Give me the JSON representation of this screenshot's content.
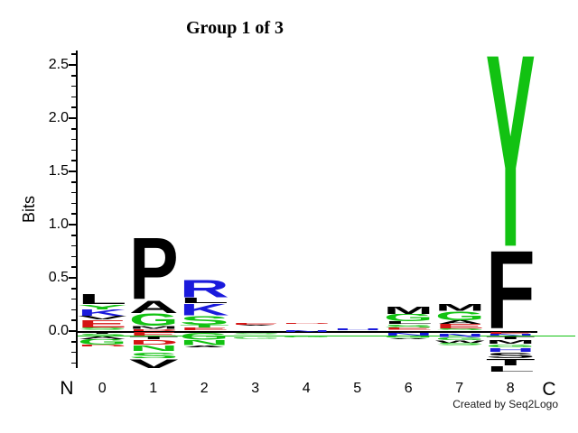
{
  "chart_data": {
    "type": "sequence_logo",
    "title": "Group 1 of 3",
    "ylabel": "Bits",
    "xlabel_left": "N",
    "xlabel_right": "C",
    "credit": "Created by Seq2Logo",
    "y_major_ticks": [
      0.0,
      0.5,
      1.0,
      1.5,
      2.0,
      2.5
    ],
    "y_minor_step": 0.1,
    "ylim": [
      -0.35,
      2.63
    ],
    "legend": "letters stacked by information content in bits; negative values drawn below zero",
    "colors": {
      "k": "#000000",
      "g": "#12c212",
      "r": "#d41414",
      "b": "#1a1adc"
    },
    "positions": [
      {
        "label": "0",
        "letters": [
          {
            "c": "L",
            "cl": "k",
            "t": 0.35,
            "b": 0.25
          },
          {
            "c": "Y",
            "cl": "g",
            "t": 0.25,
            "b": 0.205
          },
          {
            "c": "K",
            "cl": "b",
            "t": 0.205,
            "b": 0.14
          },
          {
            "c": "V",
            "cl": "k",
            "t": 0.14,
            "b": 0.105
          },
          {
            "c": "E",
            "cl": "r",
            "t": 0.105,
            "b": 0.035
          },
          {
            "c": "S",
            "cl": "g",
            "t": 0.035,
            "b": 0.012
          },
          {
            "c": "T",
            "cl": "k",
            "t": -0.012,
            "b": -0.028
          },
          {
            "c": "S",
            "cl": "g",
            "t": -0.028,
            "b": -0.05
          },
          {
            "c": "A",
            "cl": "k",
            "t": -0.05,
            "b": -0.075
          },
          {
            "c": "G",
            "cl": "g",
            "t": -0.075,
            "b": -0.128
          },
          {
            "c": "D",
            "cl": "r",
            "t": -0.128,
            "b": -0.148
          }
        ]
      },
      {
        "label": "1",
        "letters": [
          {
            "c": "P",
            "cl": "k",
            "t": 0.88,
            "b": 0.29
          },
          {
            "c": "A",
            "cl": "k",
            "t": 0.29,
            "b": 0.17
          },
          {
            "c": "G",
            "cl": "g",
            "t": 0.17,
            "b": 0.05
          },
          {
            "c": "M",
            "cl": "k",
            "t": 0.05,
            "b": 0.02
          },
          {
            "c": "D",
            "cl": "r",
            "t": 0.02,
            "b": 0.002
          },
          {
            "c": "E",
            "cl": "r",
            "t": -0.005,
            "b": -0.045
          },
          {
            "c": "T",
            "cl": "k",
            "t": -0.05,
            "b": -0.076
          },
          {
            "c": "D",
            "cl": "r",
            "t": -0.085,
            "b": -0.128
          },
          {
            "c": "N",
            "cl": "g",
            "t": -0.136,
            "b": -0.19
          },
          {
            "c": "S",
            "cl": "g",
            "t": -0.2,
            "b": -0.255
          },
          {
            "c": "V",
            "cl": "k",
            "t": -0.262,
            "b": -0.348
          }
        ]
      },
      {
        "label": "2",
        "letters": [
          {
            "c": "R",
            "cl": "b",
            "t": 0.485,
            "b": 0.315
          },
          {
            "c": "L",
            "cl": "k",
            "t": 0.315,
            "b": 0.262
          },
          {
            "c": "K",
            "cl": "b",
            "t": 0.255,
            "b": 0.145
          },
          {
            "c": "S",
            "cl": "g",
            "t": 0.145,
            "b": 0.06
          },
          {
            "c": "T",
            "cl": "g",
            "t": 0.06,
            "b": 0.035
          },
          {
            "c": "E",
            "cl": "r",
            "t": 0.035,
            "b": 0.01
          },
          {
            "c": "G",
            "cl": "g",
            "t": -0.02,
            "b": -0.085
          },
          {
            "c": "N",
            "cl": "g",
            "t": -0.085,
            "b": -0.133
          },
          {
            "c": "A",
            "cl": "k",
            "t": -0.133,
            "b": -0.155
          }
        ]
      },
      {
        "label": "3",
        "letters": [
          {
            "c": "E",
            "cl": "r",
            "t": 0.078,
            "b": 0.058
          },
          {
            "c": "A",
            "cl": "k",
            "t": 0.058,
            "b": 0.047
          },
          {
            "c": "S",
            "cl": "g",
            "t": -0.015,
            "b": -0.03
          },
          {
            "c": "G",
            "cl": "g",
            "t": -0.058,
            "b": -0.073
          }
        ]
      },
      {
        "label": "4",
        "letters": [
          {
            "c": "D",
            "cl": "r",
            "t": 0.078,
            "b": 0.068
          },
          {
            "c": "N",
            "cl": "b",
            "t": 0.012,
            "b": -0.01
          },
          {
            "c": "G",
            "cl": "g",
            "t": -0.048,
            "b": -0.06
          }
        ]
      },
      {
        "label": "5",
        "letters": [
          {
            "c": "H",
            "cl": "b",
            "t": 0.028,
            "b": 0.012
          },
          {
            "c": "G",
            "cl": "g",
            "t": -0.04,
            "b": -0.052
          }
        ]
      },
      {
        "label": "6",
        "letters": [
          {
            "c": "M",
            "cl": "k",
            "t": 0.23,
            "b": 0.16
          },
          {
            "c": "G",
            "cl": "g",
            "t": 0.16,
            "b": 0.09
          },
          {
            "c": "L",
            "cl": "k",
            "t": 0.09,
            "b": 0.062
          },
          {
            "c": "S",
            "cl": "g",
            "t": 0.062,
            "b": 0.03
          },
          {
            "c": "E",
            "cl": "r",
            "t": 0.03,
            "b": 0.008
          },
          {
            "c": "N",
            "cl": "b",
            "t": -0.02,
            "b": -0.045
          },
          {
            "c": "G",
            "cl": "g",
            "t": -0.045,
            "b": -0.065
          },
          {
            "c": "A",
            "cl": "k",
            "t": -0.065,
            "b": -0.08
          }
        ]
      },
      {
        "label": "7",
        "letters": [
          {
            "c": "M",
            "cl": "k",
            "t": 0.255,
            "b": 0.19
          },
          {
            "c": "G",
            "cl": "g",
            "t": 0.19,
            "b": 0.105
          },
          {
            "c": "A",
            "cl": "k",
            "t": 0.105,
            "b": 0.068
          },
          {
            "c": "E",
            "cl": "r",
            "t": 0.068,
            "b": 0.025
          },
          {
            "c": "S",
            "cl": "g",
            "t": 0.025,
            "b": 0.005
          },
          {
            "c": "N",
            "cl": "b",
            "t": -0.025,
            "b": -0.057
          },
          {
            "c": "G",
            "cl": "g",
            "t": -0.057,
            "b": -0.082
          },
          {
            "c": "W",
            "cl": "k",
            "t": -0.082,
            "b": -0.112
          },
          {
            "c": "S",
            "cl": "g",
            "t": -0.112,
            "b": -0.135
          }
        ]
      },
      {
        "label": "8",
        "letters": [
          {
            "c": "Y",
            "cl": "g",
            "t": 2.61,
            "b": 0.765
          },
          {
            "c": "F",
            "cl": "k",
            "t": 0.765,
            "b": 0.018
          },
          {
            "c": "E",
            "cl": "r",
            "t": -0.005,
            "b": -0.025
          },
          {
            "c": "N",
            "cl": "b",
            "t": -0.025,
            "b": -0.046
          },
          {
            "c": "T",
            "cl": "k",
            "t": -0.05,
            "b": -0.076
          },
          {
            "c": "M",
            "cl": "k",
            "t": -0.085,
            "b": -0.119
          },
          {
            "c": "G",
            "cl": "g",
            "t": -0.127,
            "b": -0.153
          },
          {
            "c": "H",
            "cl": "b",
            "t": -0.161,
            "b": -0.195
          },
          {
            "c": "S",
            "cl": "k",
            "t": -0.203,
            "b": -0.254
          },
          {
            "c": "T",
            "cl": "k",
            "t": -0.263,
            "b": -0.325
          },
          {
            "c": "L",
            "cl": "k",
            "t": -0.33,
            "b": -0.385
          }
        ]
      }
    ]
  }
}
